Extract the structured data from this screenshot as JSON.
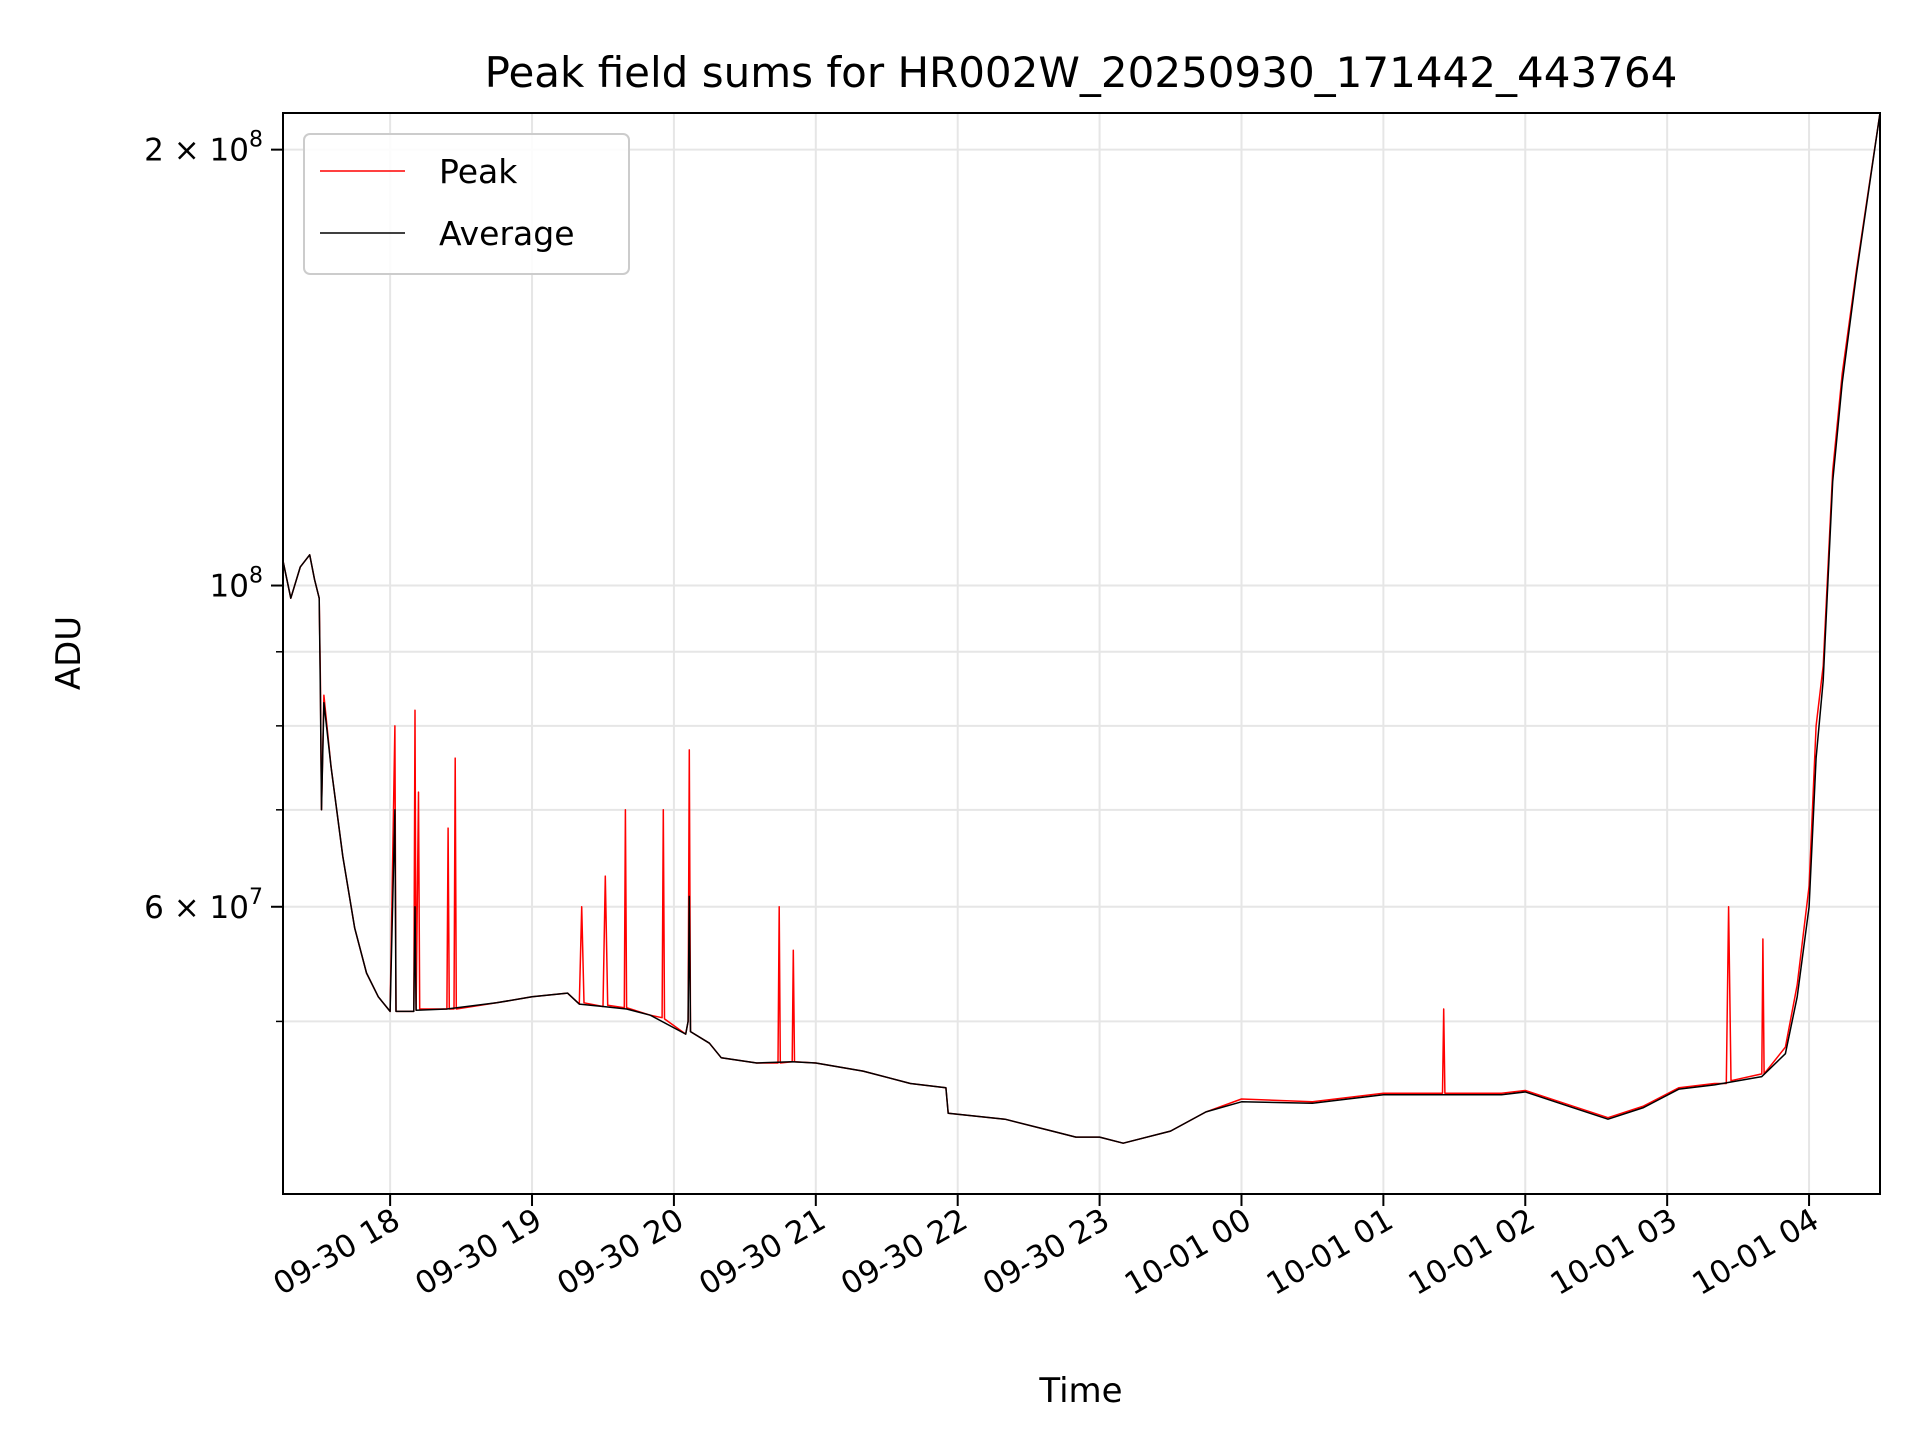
{
  "chart_data": {
    "type": "line",
    "title": "Peak field sums for HR002W_20250930_171442_443764",
    "xlabel": "Time",
    "ylabel": "ADU",
    "yscale": "log",
    "ylim": [
      38000000,
      212000000
    ],
    "xlim": [
      "2025-09-30 17:14:42",
      "2025-10-01 04:30:00"
    ],
    "grid": true,
    "legend_position": "top-left",
    "x_ticks": [
      {
        "label": "09-30 18",
        "t": "2025-09-30 18:00"
      },
      {
        "label": "09-30 19",
        "t": "2025-09-30 19:00"
      },
      {
        "label": "09-30 20",
        "t": "2025-09-30 20:00"
      },
      {
        "label": "09-30 21",
        "t": "2025-09-30 21:00"
      },
      {
        "label": "09-30 22",
        "t": "2025-09-30 22:00"
      },
      {
        "label": "09-30 23",
        "t": "2025-09-30 23:00"
      },
      {
        "label": "10-01 00",
        "t": "2025-10-01 00:00"
      },
      {
        "label": "10-01 01",
        "t": "2025-10-01 01:00"
      },
      {
        "label": "10-01 02",
        "t": "2025-10-01 02:00"
      },
      {
        "label": "10-01 03",
        "t": "2025-10-01 03:00"
      },
      {
        "label": "10-01 04",
        "t": "2025-10-01 04:00"
      }
    ],
    "y_major_ticks": [
      {
        "value": 200000000,
        "mant": "2",
        "exp": "8"
      },
      {
        "value": 100000000,
        "mant": "",
        "exp": "8"
      },
      {
        "value": 60000000,
        "mant": "6",
        "exp": "7"
      }
    ],
    "y_minor_ticks": [
      50000000,
      70000000,
      80000000,
      90000000
    ],
    "series": [
      {
        "name": "Peak",
        "color": "#ff0000",
        "points": [
          [
            "2025-09-30 17:14:42",
            104000000
          ],
          [
            "2025-09-30 17:18",
            98000000
          ],
          [
            "2025-09-30 17:22",
            103000000
          ],
          [
            "2025-09-30 17:26",
            105000000
          ],
          [
            "2025-09-30 17:28",
            101000000
          ],
          [
            "2025-09-30 17:30",
            98000000
          ],
          [
            "2025-09-30 17:30:30",
            86000000
          ],
          [
            "2025-09-30 17:31",
            70000000
          ],
          [
            "2025-09-30 17:32",
            84000000
          ],
          [
            "2025-09-30 17:35",
            75000000
          ],
          [
            "2025-09-30 17:40",
            65000000
          ],
          [
            "2025-09-30 17:45",
            58000000
          ],
          [
            "2025-09-30 17:50",
            54000000
          ],
          [
            "2025-09-30 17:55",
            52000000
          ],
          [
            "2025-09-30 18:00",
            50800000
          ],
          [
            "2025-09-30 18:02",
            80000000
          ],
          [
            "2025-09-30 18:02:30",
            50800000
          ],
          [
            "2025-09-30 18:10",
            50800000
          ],
          [
            "2025-09-30 18:10:30",
            82000000
          ],
          [
            "2025-09-30 18:11",
            50900000
          ],
          [
            "2025-09-30 18:12",
            72000000
          ],
          [
            "2025-09-30 18:12:30",
            51000000
          ],
          [
            "2025-09-30 18:24",
            51000000
          ],
          [
            "2025-09-30 18:24:30",
            68000000
          ],
          [
            "2025-09-30 18:25",
            51000000
          ],
          [
            "2025-09-30 18:27",
            51000000
          ],
          [
            "2025-09-30 18:27:30",
            76000000
          ],
          [
            "2025-09-30 18:28",
            51000000
          ],
          [
            "2025-09-30 18:45",
            51500000
          ],
          [
            "2025-09-30 19:00",
            52000000
          ],
          [
            "2025-09-30 19:15",
            52300000
          ],
          [
            "2025-09-30 19:20",
            51400000
          ],
          [
            "2025-09-30 19:21",
            60000000
          ],
          [
            "2025-09-30 19:22",
            51500000
          ],
          [
            "2025-09-30 19:30",
            51200000
          ],
          [
            "2025-09-30 19:31",
            63000000
          ],
          [
            "2025-09-30 19:32",
            51300000
          ],
          [
            "2025-09-30 19:39",
            51100000
          ],
          [
            "2025-09-30 19:39:30",
            70000000
          ],
          [
            "2025-09-30 19:40",
            51100000
          ],
          [
            "2025-09-30 19:50",
            50500000
          ],
          [
            "2025-09-30 19:55",
            50300000
          ],
          [
            "2025-09-30 19:55:30",
            70000000
          ],
          [
            "2025-09-30 19:56",
            50200000
          ],
          [
            "2025-09-30 20:05",
            49000000
          ],
          [
            "2025-09-30 20:06",
            50000000
          ],
          [
            "2025-09-30 20:06:30",
            77000000
          ],
          [
            "2025-09-30 20:07",
            49200000
          ],
          [
            "2025-09-30 20:15",
            48300000
          ],
          [
            "2025-09-30 20:20",
            47200000
          ],
          [
            "2025-09-30 20:35",
            46800000
          ],
          [
            "2025-09-30 20:44",
            46800000
          ],
          [
            "2025-09-30 20:44:30",
            60000000
          ],
          [
            "2025-09-30 20:45",
            46800000
          ],
          [
            "2025-09-30 20:50",
            46900000
          ],
          [
            "2025-09-30 20:50:30",
            56000000
          ],
          [
            "2025-09-30 20:51",
            46900000
          ],
          [
            "2025-09-30 21:00",
            46800000
          ],
          [
            "2025-09-30 21:20",
            46200000
          ],
          [
            "2025-09-30 21:40",
            45300000
          ],
          [
            "2025-09-30 21:55",
            45000000
          ],
          [
            "2025-09-30 21:56",
            43200000
          ],
          [
            "2025-09-30 22:20",
            42800000
          ],
          [
            "2025-09-30 22:40",
            42000000
          ],
          [
            "2025-09-30 22:50",
            41600000
          ],
          [
            "2025-09-30 23:00",
            41600000
          ],
          [
            "2025-09-30 23:10",
            41200000
          ],
          [
            "2025-09-30 23:30",
            42000000
          ],
          [
            "2025-09-30 23:45",
            43300000
          ],
          [
            "2025-10-01 00:00",
            44200000
          ],
          [
            "2025-10-01 00:30",
            44000000
          ],
          [
            "2025-10-01 01:00",
            44600000
          ],
          [
            "2025-10-01 01:15",
            44600000
          ],
          [
            "2025-10-01 01:25",
            44600000
          ],
          [
            "2025-10-01 01:25:30",
            51000000
          ],
          [
            "2025-10-01 01:26",
            44600000
          ],
          [
            "2025-10-01 01:50",
            44600000
          ],
          [
            "2025-10-01 02:00",
            44800000
          ],
          [
            "2025-10-01 02:20",
            43700000
          ],
          [
            "2025-10-01 02:35",
            42900000
          ],
          [
            "2025-10-01 02:50",
            43700000
          ],
          [
            "2025-10-01 03:05",
            45000000
          ],
          [
            "2025-10-01 03:20",
            45300000
          ],
          [
            "2025-10-01 03:25",
            45300000
          ],
          [
            "2025-10-01 03:26",
            60000000
          ],
          [
            "2025-10-01 03:27",
            45500000
          ],
          [
            "2025-10-01 03:40",
            46000000
          ],
          [
            "2025-10-01 03:40:30",
            57000000
          ],
          [
            "2025-10-01 03:41",
            46000000
          ],
          [
            "2025-10-01 03:50",
            48000000
          ],
          [
            "2025-10-01 03:55",
            53000000
          ],
          [
            "2025-10-01 04:00",
            62000000
          ],
          [
            "2025-10-01 04:03",
            80000000
          ],
          [
            "2025-10-01 04:06",
            88000000
          ],
          [
            "2025-10-01 04:10",
            120000000
          ],
          [
            "2025-10-01 04:14",
            140000000
          ],
          [
            "2025-10-01 04:20",
            165000000
          ],
          [
            "2025-10-01 04:30",
            212000000
          ]
        ]
      },
      {
        "name": "Average",
        "color": "#000000",
        "points": [
          [
            "2025-09-30 17:14:42",
            104000000
          ],
          [
            "2025-09-30 17:18",
            98000000
          ],
          [
            "2025-09-30 17:22",
            103000000
          ],
          [
            "2025-09-30 17:26",
            105000000
          ],
          [
            "2025-09-30 17:28",
            101000000
          ],
          [
            "2025-09-30 17:30",
            98000000
          ],
          [
            "2025-09-30 17:30:30",
            84000000
          ],
          [
            "2025-09-30 17:31",
            70000000
          ],
          [
            "2025-09-30 17:32",
            83000000
          ],
          [
            "2025-09-30 17:35",
            75000000
          ],
          [
            "2025-09-30 17:40",
            65000000
          ],
          [
            "2025-09-30 17:45",
            58000000
          ],
          [
            "2025-09-30 17:50",
            54000000
          ],
          [
            "2025-09-30 17:55",
            52000000
          ],
          [
            "2025-09-30 18:00",
            50800000
          ],
          [
            "2025-09-30 18:02",
            70000000
          ],
          [
            "2025-09-30 18:02:30",
            50800000
          ],
          [
            "2025-09-30 18:10",
            50800000
          ],
          [
            "2025-09-30 18:10:30",
            60000000
          ],
          [
            "2025-09-30 18:11",
            50900000
          ],
          [
            "2025-09-30 18:24",
            51000000
          ],
          [
            "2025-09-30 18:45",
            51500000
          ],
          [
            "2025-09-30 19:00",
            52000000
          ],
          [
            "2025-09-30 19:15",
            52300000
          ],
          [
            "2025-09-30 19:20",
            51400000
          ],
          [
            "2025-09-30 19:30",
            51200000
          ],
          [
            "2025-09-30 19:40",
            51000000
          ],
          [
            "2025-09-30 19:50",
            50500000
          ],
          [
            "2025-09-30 20:05",
            49000000
          ],
          [
            "2025-09-30 20:06",
            50000000
          ],
          [
            "2025-09-30 20:06:30",
            61000000
          ],
          [
            "2025-09-30 20:07",
            49200000
          ],
          [
            "2025-09-30 20:15",
            48300000
          ],
          [
            "2025-09-30 20:20",
            47200000
          ],
          [
            "2025-09-30 20:35",
            46800000
          ],
          [
            "2025-09-30 20:50",
            46900000
          ],
          [
            "2025-09-30 21:00",
            46800000
          ],
          [
            "2025-09-30 21:20",
            46200000
          ],
          [
            "2025-09-30 21:40",
            45300000
          ],
          [
            "2025-09-30 21:55",
            45000000
          ],
          [
            "2025-09-30 21:56",
            43200000
          ],
          [
            "2025-09-30 22:20",
            42800000
          ],
          [
            "2025-09-30 22:40",
            42000000
          ],
          [
            "2025-09-30 22:50",
            41600000
          ],
          [
            "2025-09-30 23:00",
            41600000
          ],
          [
            "2025-09-30 23:10",
            41200000
          ],
          [
            "2025-09-30 23:30",
            42000000
          ],
          [
            "2025-09-30 23:45",
            43300000
          ],
          [
            "2025-10-01 00:00",
            44000000
          ],
          [
            "2025-10-01 00:30",
            43900000
          ],
          [
            "2025-10-01 01:00",
            44500000
          ],
          [
            "2025-10-01 01:25",
            44500000
          ],
          [
            "2025-10-01 01:50",
            44500000
          ],
          [
            "2025-10-01 02:00",
            44700000
          ],
          [
            "2025-10-01 02:20",
            43600000
          ],
          [
            "2025-10-01 02:35",
            42800000
          ],
          [
            "2025-10-01 02:50",
            43600000
          ],
          [
            "2025-10-01 03:05",
            44900000
          ],
          [
            "2025-10-01 03:20",
            45200000
          ],
          [
            "2025-10-01 03:40",
            45800000
          ],
          [
            "2025-10-01 03:50",
            47500000
          ],
          [
            "2025-10-01 03:55",
            52000000
          ],
          [
            "2025-10-01 04:00",
            60000000
          ],
          [
            "2025-10-01 04:03",
            76000000
          ],
          [
            "2025-10-01 04:06",
            86000000
          ],
          [
            "2025-10-01 04:10",
            118000000
          ],
          [
            "2025-10-01 04:14",
            138000000
          ],
          [
            "2025-10-01 04:20",
            164000000
          ],
          [
            "2025-10-01 04:30",
            212000000
          ]
        ]
      }
    ]
  }
}
